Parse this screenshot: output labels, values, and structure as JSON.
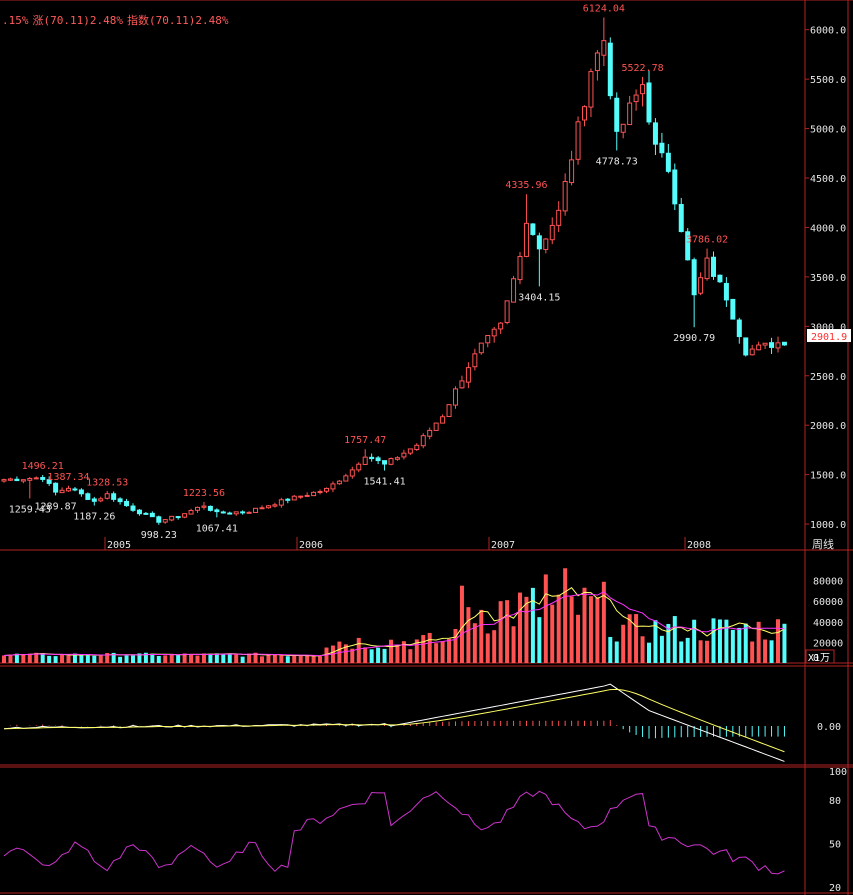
{
  "header": {
    "pct": ".15%",
    "rise_label": "涨(70.11)2.48%",
    "index_label": "指数(70.11)2.48%"
  },
  "side": {
    "last_price": "2901.9",
    "period": "周线",
    "volume_unit": "X1万"
  },
  "colors": {
    "up": "#ff5353",
    "down": "#54fcfc",
    "frame": "#b22222",
    "axis_text": "#e6e6e6",
    "ma_yellow": "#ffff66",
    "ma_magenta": "#ff33ff",
    "rsi": "#cc33cc"
  },
  "chart_data": [
    {
      "type": "candlestick",
      "title": "",
      "x_labels": [
        "2005",
        "2006",
        "2007",
        "2008"
      ],
      "ylim": [
        950,
        6250
      ],
      "yticks": [
        "1000.0",
        "1500.0",
        "2000.0",
        "2500.0",
        "3000.0",
        "3500.0",
        "4000.0",
        "4500.0",
        "5000.0",
        "5500.0",
        "6000.0"
      ],
      "annotations": [
        {
          "label": "1496.21",
          "value": 1496.21,
          "i": 6,
          "type": "high"
        },
        {
          "label": "1387.34",
          "value": 1387.34,
          "i": 10,
          "type": "high"
        },
        {
          "label": "1259.43",
          "value": 1259.43,
          "i": 4,
          "type": "low"
        },
        {
          "label": "1289.87",
          "value": 1289.87,
          "i": 8,
          "type": "low"
        },
        {
          "label": "1328.53",
          "value": 1328.53,
          "i": 16,
          "type": "high"
        },
        {
          "label": "1187.26",
          "value": 1187.26,
          "i": 14,
          "type": "low"
        },
        {
          "label": "998.23",
          "value": 998.23,
          "i": 24,
          "type": "low"
        },
        {
          "label": "1223.56",
          "value": 1223.56,
          "i": 31,
          "type": "high"
        },
        {
          "label": "1067.41",
          "value": 1067.41,
          "i": 33,
          "type": "low"
        },
        {
          "label": "1757.47",
          "value": 1757.47,
          "i": 56,
          "type": "high"
        },
        {
          "label": "1541.41",
          "value": 1541.41,
          "i": 59,
          "type": "low"
        },
        {
          "label": "4335.96",
          "value": 4335.96,
          "i": 81,
          "type": "high"
        },
        {
          "label": "3404.15",
          "value": 3404.15,
          "i": 83,
          "type": "low"
        },
        {
          "label": "6124.04",
          "value": 6124.04,
          "i": 93,
          "type": "high"
        },
        {
          "label": "4778.73",
          "value": 4778.73,
          "i": 95,
          "type": "low"
        },
        {
          "label": "5522.78",
          "value": 5522.78,
          "i": 99,
          "type": "high"
        },
        {
          "label": "3786.02",
          "value": 3786.02,
          "i": 109,
          "type": "high"
        },
        {
          "label": "2990.79",
          "value": 2990.79,
          "i": 107,
          "type": "low"
        }
      ]
    },
    {
      "type": "bar",
      "title": "",
      "ylim": [
        0,
        100000
      ],
      "yticks": [
        "20000",
        "40000",
        "60000",
        "80000"
      ]
    },
    {
      "type": "line",
      "title": "",
      "ylim": [
        -2,
        2
      ],
      "yticks": [
        "0.00"
      ]
    },
    {
      "type": "line",
      "title": "",
      "ylim": [
        15,
        105
      ],
      "yticks": [
        "20",
        "50",
        "80",
        "100"
      ]
    }
  ]
}
